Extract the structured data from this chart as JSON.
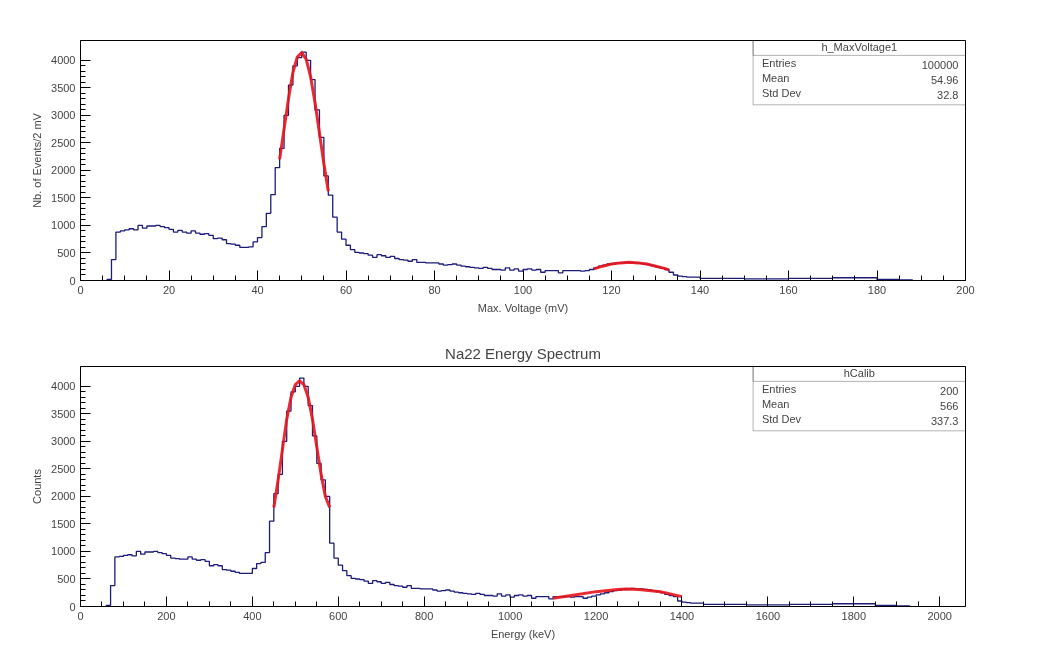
{
  "chart_data": [
    {
      "type": "histogram",
      "xlabel": "Max. Voltage (mV)",
      "ylabel": "Nb. of Events/2 mV",
      "annotations": [
        "h_MaxVoltage1",
        "Entries",
        "100000",
        "Mean",
        "54.96",
        "Std Dev",
        "32.8"
      ],
      "xlim": [
        0,
        200
      ],
      "xticks": [
        0,
        20,
        40,
        60,
        80,
        100,
        120,
        140,
        160,
        180,
        200
      ],
      "ylim": [
        0,
        4360
      ],
      "yticks": [
        0,
        500,
        1000,
        1500,
        2000,
        2500,
        3000,
        3500,
        4000
      ],
      "series": [
        {
          "type": "histogram",
          "color": "#1c1c78",
          "bins": [
            6,
            7,
            8,
            9,
            10,
            11,
            12,
            13,
            14,
            15,
            16,
            17,
            18,
            19,
            20,
            21,
            22,
            23,
            24,
            25,
            26,
            27,
            28,
            29,
            30,
            31,
            32,
            33,
            34,
            35,
            36,
            37,
            38,
            39,
            40,
            41,
            42,
            43,
            44,
            45,
            46,
            47,
            48,
            49,
            50,
            51,
            52,
            53,
            54,
            55,
            56,
            57,
            58,
            59,
            60,
            61,
            62,
            63,
            64,
            65,
            66,
            67,
            68,
            69,
            70,
            71,
            72,
            73,
            74,
            75,
            76,
            77,
            78,
            79,
            80,
            81,
            82,
            83,
            84,
            85,
            86,
            87,
            88,
            89,
            90,
            91,
            92,
            93,
            94,
            95,
            96,
            97,
            98,
            99,
            100,
            101,
            102,
            103,
            104,
            105,
            106,
            107,
            108,
            109,
            110,
            111,
            112,
            113,
            114,
            115,
            116,
            117,
            118,
            119,
            120,
            121,
            122,
            123,
            124,
            125,
            126,
            127,
            128,
            129,
            130,
            131,
            132,
            133,
            134,
            135,
            136,
            137,
            138,
            139,
            140,
            141,
            142,
            143,
            144,
            145,
            146,
            147,
            148,
            149,
            150,
            151,
            152,
            153,
            154,
            155,
            156,
            157,
            158,
            159,
            160,
            161,
            162,
            163,
            164,
            165,
            166,
            167,
            168,
            169,
            170,
            171,
            172,
            173,
            174,
            175,
            176,
            177,
            178,
            179,
            180,
            181,
            182,
            183,
            184,
            185,
            186,
            187,
            188
          ],
          "values": [
            20,
            380,
            880,
            900,
            920,
            940,
            920,
            1000,
            950,
            990,
            990,
            1000,
            980,
            960,
            930,
            880,
            910,
            880,
            860,
            900,
            860,
            840,
            850,
            820,
            760,
            770,
            740,
            670,
            660,
            640,
            600,
            600,
            610,
            700,
            780,
            980,
            1220,
            1560,
            2050,
            2400,
            3000,
            3550,
            3900,
            4050,
            4150,
            4000,
            3650,
            3100,
            2600,
            1900,
            1550,
            1150,
            880,
            750,
            640,
            560,
            510,
            500,
            490,
            460,
            420,
            470,
            450,
            420,
            440,
            400,
            380,
            370,
            350,
            380,
            330,
            330,
            320,
            320,
            320,
            300,
            280,
            290,
            300,
            280,
            260,
            250,
            240,
            230,
            220,
            240,
            220,
            200,
            200,
            190,
            230,
            190,
            210,
            170,
            200,
            210,
            190,
            200,
            150,
            180,
            180,
            180,
            140,
            180,
            180,
            180,
            180,
            170,
            180,
            200,
            230,
            260,
            280,
            300,
            300,
            320,
            320,
            330,
            320,
            320,
            310,
            300,
            290,
            270,
            250,
            220,
            200,
            150,
            100,
            80,
            70,
            60,
            60,
            60,
            40,
            40,
            40,
            40,
            40,
            40,
            40,
            40,
            40,
            40,
            30,
            30,
            30,
            30,
            30,
            30,
            30,
            30,
            30,
            30,
            40,
            40,
            40,
            40,
            40,
            40,
            40,
            40,
            40,
            40,
            50,
            50,
            50,
            50,
            50,
            50,
            50,
            50,
            50,
            50,
            20,
            20,
            20,
            20,
            20,
            10,
            10,
            10
          ]
        },
        {
          "type": "line",
          "color": "#e8141c",
          "x": [
            45,
            46,
            47,
            48,
            49,
            50,
            51,
            52,
            53,
            54,
            55,
            56
          ],
          "values": [
            2200,
            2750,
            3300,
            3780,
            4060,
            4140,
            4020,
            3700,
            3230,
            2680,
            2120,
            1620
          ]
        },
        {
          "type": "line",
          "color": "#e8141c",
          "x": [
            116,
            118,
            120,
            122,
            124,
            126,
            128,
            130,
            132,
            133
          ],
          "values": [
            210,
            260,
            300,
            320,
            330,
            320,
            300,
            260,
            220,
            190
          ]
        }
      ]
    },
    {
      "type": "histogram",
      "title": "Na22 Energy Spectrum",
      "xlabel": "Energy (keV)",
      "ylabel": "Counts",
      "annotations": [
        "hCalib",
        "Entries",
        "200",
        "Mean",
        "566",
        "Std Dev",
        "337.3"
      ],
      "xlim": [
        0,
        2060
      ],
      "xticks": [
        0,
        200,
        400,
        600,
        800,
        1000,
        1200,
        1400,
        1600,
        1800,
        2000
      ],
      "ylim": [
        0,
        4360
      ],
      "yticks": [
        0,
        500,
        1000,
        1500,
        2000,
        2500,
        3000,
        3500,
        4000
      ],
      "series": [
        {
          "type": "histogram",
          "color": "#1c1c78",
          "bins": [
            60,
            70,
            80,
            90,
            100,
            110,
            120,
            130,
            140,
            150,
            160,
            170,
            180,
            190,
            200,
            210,
            220,
            230,
            240,
            250,
            260,
            270,
            280,
            290,
            300,
            310,
            320,
            330,
            340,
            350,
            360,
            370,
            380,
            390,
            400,
            410,
            420,
            430,
            440,
            450,
            460,
            470,
            480,
            490,
            500,
            510,
            520,
            530,
            540,
            550,
            560,
            570,
            580,
            590,
            600,
            610,
            620,
            630,
            640,
            650,
            660,
            670,
            680,
            690,
            700,
            710,
            720,
            730,
            740,
            750,
            760,
            770,
            780,
            790,
            800,
            810,
            820,
            830,
            840,
            850,
            860,
            870,
            880,
            890,
            900,
            910,
            920,
            930,
            940,
            950,
            960,
            970,
            980,
            990,
            1000,
            1010,
            1020,
            1030,
            1040,
            1050,
            1060,
            1070,
            1080,
            1090,
            1100,
            1110,
            1120,
            1130,
            1140,
            1150,
            1160,
            1170,
            1180,
            1190,
            1200,
            1210,
            1220,
            1230,
            1240,
            1250,
            1260,
            1270,
            1280,
            1290,
            1300,
            1310,
            1320,
            1330,
            1340,
            1350,
            1360,
            1370,
            1380,
            1390,
            1400,
            1410,
            1420,
            1430,
            1440,
            1450,
            1460,
            1470,
            1480,
            1490,
            1500,
            1510,
            1520,
            1530,
            1540,
            1550,
            1560,
            1570,
            1580,
            1590,
            1600,
            1610,
            1620,
            1630,
            1640,
            1650,
            1660,
            1670,
            1680,
            1690,
            1700,
            1710,
            1720,
            1730,
            1740,
            1750,
            1760,
            1770,
            1780,
            1790,
            1800,
            1810,
            1820,
            1830,
            1840,
            1850,
            1860,
            1870,
            1880,
            1890,
            1900,
            1910,
            1920,
            1930
          ],
          "values": [
            20,
            380,
            900,
            910,
            930,
            940,
            920,
            1000,
            950,
            990,
            990,
            1000,
            980,
            960,
            930,
            880,
            870,
            860,
            860,
            900,
            860,
            840,
            850,
            820,
            740,
            760,
            740,
            670,
            660,
            640,
            620,
            600,
            600,
            600,
            690,
            780,
            800,
            980,
            1550,
            2050,
            2400,
            3000,
            3550,
            3900,
            4000,
            4150,
            4000,
            3650,
            3100,
            2600,
            2300,
            2000,
            1150,
            880,
            750,
            650,
            560,
            510,
            500,
            490,
            460,
            420,
            470,
            450,
            420,
            440,
            400,
            380,
            370,
            350,
            380,
            330,
            330,
            320,
            320,
            320,
            300,
            280,
            290,
            300,
            280,
            260,
            250,
            240,
            230,
            220,
            240,
            220,
            200,
            200,
            190,
            230,
            190,
            210,
            170,
            200,
            210,
            190,
            200,
            150,
            180,
            180,
            180,
            140,
            180,
            180,
            180,
            180,
            170,
            180,
            180,
            150,
            170,
            190,
            210,
            230,
            250,
            270,
            290,
            300,
            310,
            320,
            330,
            320,
            320,
            310,
            300,
            290,
            270,
            250,
            220,
            200,
            180,
            100,
            80,
            70,
            60,
            60,
            60,
            40,
            40,
            40,
            40,
            40,
            40,
            40,
            40,
            40,
            40,
            30,
            30,
            30,
            30,
            30,
            30,
            30,
            30,
            30,
            30,
            40,
            40,
            40,
            40,
            40,
            40,
            40,
            40,
            40,
            40,
            50,
            50,
            50,
            50,
            50,
            50,
            50,
            50,
            50,
            50,
            20,
            20,
            20,
            20,
            20,
            10,
            10,
            10
          ]
        },
        {
          "type": "line",
          "color": "#e8141c",
          "x": [
            450,
            460,
            470,
            480,
            490,
            500,
            510,
            520,
            530,
            540,
            550,
            560,
            570,
            580
          ],
          "values": [
            1800,
            2300,
            2850,
            3400,
            3800,
            4030,
            4100,
            4030,
            3800,
            3400,
            2900,
            2400,
            2000,
            1800
          ]
        },
        {
          "type": "line",
          "color": "#e8141c",
          "x": [
            1100,
            1150,
            1200,
            1250,
            1270,
            1300,
            1350,
            1400
          ],
          "values": [
            150,
            210,
            270,
            310,
            320,
            310,
            270,
            180
          ]
        }
      ]
    }
  ]
}
